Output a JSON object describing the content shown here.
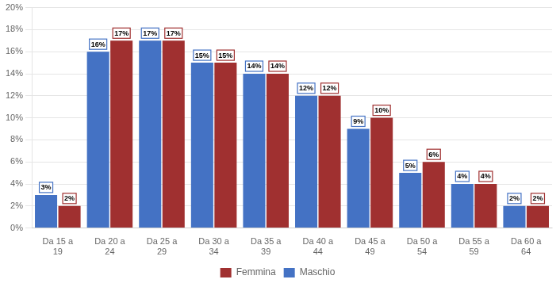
{
  "chart_data": {
    "type": "bar",
    "categories": [
      "Da 15 a\n19",
      "Da 20 a\n24",
      "Da 25 a\n29",
      "Da 30 a\n34",
      "Da 35 a\n39",
      "Da 40 a\n44",
      "Da 45 a\n49",
      "Da 50 a\n54",
      "Da 55 a\n59",
      "Da 60 a\n64"
    ],
    "series": [
      {
        "name": "Maschio",
        "color": "#4472C4",
        "values": [
          3,
          16,
          17,
          15,
          14,
          12,
          9,
          5,
          4,
          2
        ],
        "value_labels": [
          "3%",
          "16%",
          "17%",
          "15%",
          "14%",
          "12%",
          "9%",
          "5%",
          "4%",
          "2%"
        ]
      },
      {
        "name": "Femmina",
        "color": "#A03030",
        "values": [
          2,
          17,
          17,
          15,
          14,
          12,
          10,
          6,
          4,
          2
        ],
        "value_labels": [
          "2%",
          "17%",
          "17%",
          "15%",
          "14%",
          "12%",
          "10%",
          "6%",
          "4%",
          "2%"
        ]
      }
    ],
    "ylim": [
      0,
      20
    ],
    "yticks": [
      {
        "value": 0,
        "label": "0%"
      },
      {
        "value": 2,
        "label": "2%"
      },
      {
        "value": 4,
        "label": "4%"
      },
      {
        "value": 6,
        "label": "6%"
      },
      {
        "value": 8,
        "label": "8%"
      },
      {
        "value": 10,
        "label": "10%"
      },
      {
        "value": 12,
        "label": "12%"
      },
      {
        "value": 14,
        "label": "14%"
      },
      {
        "value": 16,
        "label": "16%"
      },
      {
        "value": 18,
        "label": "18%"
      },
      {
        "value": 20,
        "label": "20%"
      }
    ],
    "grid": true,
    "legend": "bottom",
    "data_labels": true
  }
}
